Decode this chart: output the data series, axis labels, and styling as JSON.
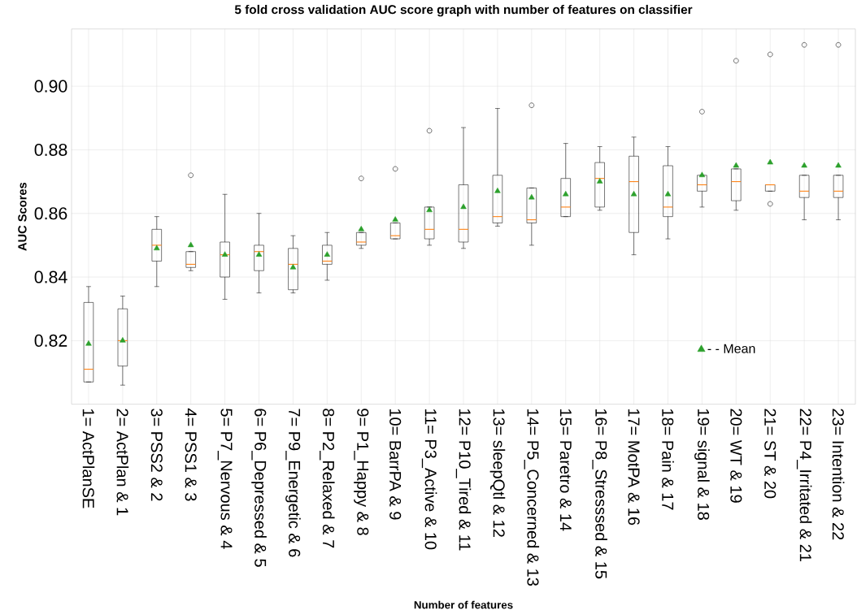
{
  "chart_data": {
    "type": "box",
    "title": "5 fold cross validation AUC score graph with number of features on classifier",
    "xlabel": "Number of features",
    "ylabel": "AUC Scores",
    "categories": [
      "1= ActPlanSE",
      "2= ActPlan & 1",
      "3= PSS2 & 2",
      "4= PSS1 & 3",
      "5= P7_Nervous & 4",
      "6= P6_Depressed & 5",
      "7= P9_Energetic & 6",
      "8= P2_Relaxed & 7",
      "9= P1_Happy & 8",
      "10= BarrPA & 9",
      "11= P3_Active & 10",
      "12= P10_Tired & 11",
      "13= sleepQtl & 12",
      "14= P5_Concerned & 13",
      "15= Paretro & 14",
      "16= P8_Stresssed & 15",
      "17= MotPA & 16",
      "18= Pain & 17",
      "19= signal & 18",
      "20= WT & 19",
      "21= ST & 20",
      "22= P4_Irritated & 21",
      "23= Intention & 22"
    ],
    "ylim": [
      0.8,
      0.918
    ],
    "yticks": [
      {
        "value": 0.82,
        "label": "0.82"
      },
      {
        "value": 0.84,
        "label": "0.84"
      },
      {
        "value": 0.86,
        "label": "0.86"
      },
      {
        "value": 0.88,
        "label": "0.88"
      },
      {
        "value": 0.9,
        "label": "0.90"
      }
    ],
    "grid": true,
    "legend": "bottom right",
    "series": [
      {
        "color": "#000000",
        "boxes": [
          {
            "low": 0.807,
            "q1": 0.807,
            "median": 0.811,
            "q3": 0.832,
            "high": 0.837
          },
          {
            "low": 0.806,
            "q1": 0.812,
            "median": 0.82,
            "q3": 0.83,
            "high": 0.834
          },
          {
            "low": 0.837,
            "q1": 0.845,
            "median": 0.85,
            "q3": 0.855,
            "high": 0.859
          },
          {
            "low": 0.842,
            "q1": 0.843,
            "median": 0.844,
            "q3": 0.848,
            "high": 0.848,
            "outliers": [
              0.872
            ]
          },
          {
            "low": 0.833,
            "q1": 0.84,
            "median": 0.847,
            "q3": 0.851,
            "high": 0.866
          },
          {
            "low": 0.835,
            "q1": 0.842,
            "median": 0.848,
            "q3": 0.85,
            "high": 0.86
          },
          {
            "low": 0.835,
            "q1": 0.836,
            "median": 0.844,
            "q3": 0.849,
            "high": 0.853
          },
          {
            "low": 0.839,
            "q1": 0.844,
            "median": 0.845,
            "q3": 0.85,
            "high": 0.854
          },
          {
            "low": 0.849,
            "q1": 0.85,
            "median": 0.851,
            "q3": 0.854,
            "high": 0.854,
            "outliers": [
              0.871
            ]
          },
          {
            "low": 0.852,
            "q1": 0.852,
            "median": 0.853,
            "q3": 0.857,
            "high": 0.857,
            "outliers": [
              0.874
            ]
          },
          {
            "low": 0.85,
            "q1": 0.852,
            "median": 0.855,
            "q3": 0.862,
            "high": 0.862,
            "outliers": [
              0.886
            ]
          },
          {
            "low": 0.849,
            "q1": 0.851,
            "median": 0.855,
            "q3": 0.869,
            "high": 0.887
          },
          {
            "low": 0.856,
            "q1": 0.857,
            "median": 0.859,
            "q3": 0.872,
            "high": 0.893
          },
          {
            "low": 0.85,
            "q1": 0.857,
            "median": 0.858,
            "q3": 0.868,
            "high": 0.868,
            "outliers": [
              0.894
            ]
          },
          {
            "low": 0.859,
            "q1": 0.859,
            "median": 0.862,
            "q3": 0.871,
            "high": 0.882
          },
          {
            "low": 0.861,
            "q1": 0.862,
            "median": 0.871,
            "q3": 0.876,
            "high": 0.881
          },
          {
            "low": 0.847,
            "q1": 0.854,
            "median": 0.87,
            "q3": 0.878,
            "high": 0.884
          },
          {
            "low": 0.852,
            "q1": 0.859,
            "median": 0.862,
            "q3": 0.875,
            "high": 0.881
          },
          {
            "low": 0.862,
            "q1": 0.867,
            "median": 0.869,
            "q3": 0.872,
            "high": 0.872,
            "outliers": [
              0.892
            ]
          },
          {
            "low": 0.861,
            "q1": 0.864,
            "median": 0.87,
            "q3": 0.874,
            "high": 0.874,
            "outliers": [
              0.908
            ]
          },
          {
            "low": 0.867,
            "q1": 0.867,
            "median": 0.869,
            "q3": 0.869,
            "high": 0.869,
            "outliers": [
              0.91,
              0.863
            ]
          },
          {
            "low": 0.858,
            "q1": 0.865,
            "median": 0.867,
            "q3": 0.872,
            "high": 0.872,
            "outliers": [
              0.913
            ]
          },
          {
            "low": 0.858,
            "q1": 0.865,
            "median": 0.867,
            "q3": 0.872,
            "high": 0.872,
            "outliers": [
              0.913
            ]
          }
        ]
      },
      {
        "type": "scatter",
        "name": "- - Mean",
        "color": "#2ca02c",
        "marker": "triangle",
        "x": [
          "1= ActPlanSE",
          "2= ActPlan & 1",
          "3= PSS2 & 2",
          "4= PSS1 & 3",
          "5= P7_Nervous & 4",
          "6= P6_Depressed & 5",
          "7= P9_Energetic & 6",
          "8= P2_Relaxed & 7",
          "9= P1_Happy & 8",
          "10= BarrPA & 9",
          "11= P3_Active & 10",
          "12= P10_Tired & 11",
          "13= sleepQtl & 12",
          "14= P5_Concerned & 13",
          "15= Paretro & 14",
          "16= P8_Stresssed & 15",
          "17= MotPA & 16",
          "18= Pain & 17",
          "19= signal & 18",
          "20= WT & 19",
          "21= ST & 20",
          "22= P4_Irritated & 21",
          "23= Intention & 22"
        ],
        "values": [
          0.819,
          0.82,
          0.849,
          0.85,
          0.847,
          0.847,
          0.843,
          0.847,
          0.855,
          0.858,
          0.861,
          0.862,
          0.867,
          0.865,
          0.866,
          0.87,
          0.866,
          0.866,
          0.872,
          0.875,
          0.876,
          0.875,
          0.875
        ]
      }
    ]
  }
}
